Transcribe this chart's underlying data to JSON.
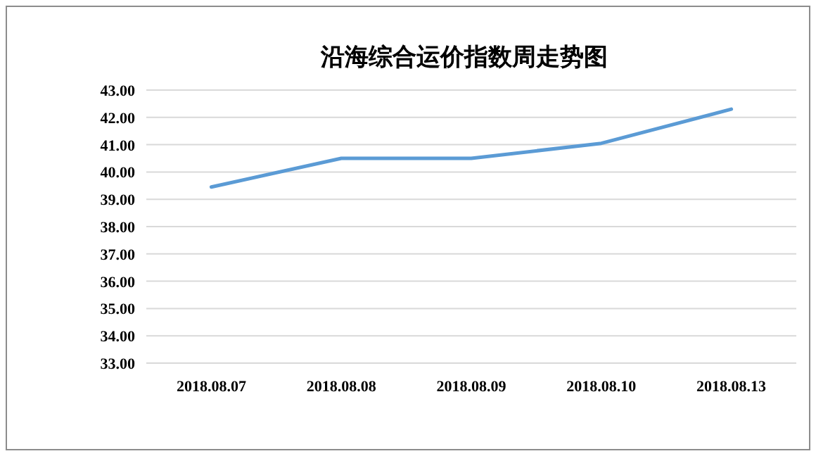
{
  "chart_data": {
    "type": "line",
    "title": "沿海综合运价指数周走势图",
    "categories": [
      "2018.08.07",
      "2018.08.08",
      "2018.08.09",
      "2018.08.10",
      "2018.08.13"
    ],
    "series": [
      {
        "color": "#5b9bd5",
        "values": [
          39.45,
          40.5,
          40.5,
          41.05,
          42.3
        ]
      }
    ],
    "ylim": [
      33,
      43
    ],
    "yticks": [
      {
        "value": 33,
        "label": "33.00"
      },
      {
        "value": 34,
        "label": "34.00"
      },
      {
        "value": 35,
        "label": "35.00"
      },
      {
        "value": 36,
        "label": "36.00"
      },
      {
        "value": 37,
        "label": "37.00"
      },
      {
        "value": 38,
        "label": "38.00"
      },
      {
        "value": 39,
        "label": "39.00"
      },
      {
        "value": 40,
        "label": "40.00"
      },
      {
        "value": 41,
        "label": "41.00"
      },
      {
        "value": 42,
        "label": "42.00"
      },
      {
        "value": 43,
        "label": "43.00"
      }
    ],
    "grid": "y",
    "marker": "none",
    "line_style": "solid"
  }
}
